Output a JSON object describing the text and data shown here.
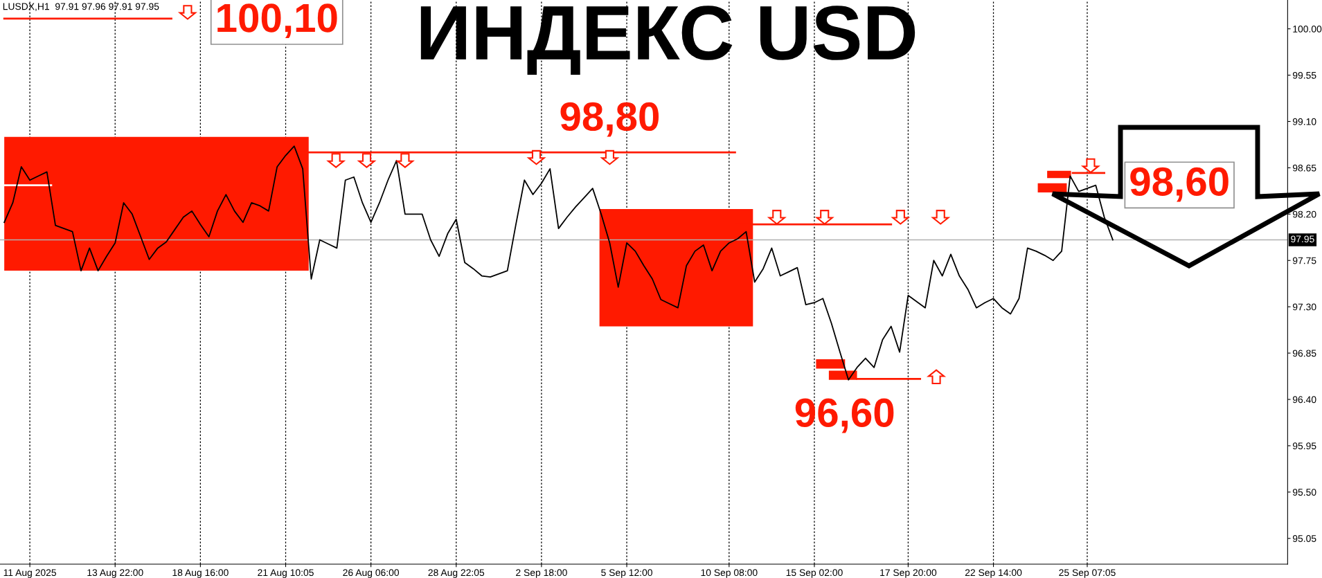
{
  "chart_data": {
    "type": "line",
    "title": "ИНДЕКС USD",
    "categories": [
      null,
      null,
      null,
      "11 Aug 2025",
      null,
      null,
      null,
      null,
      null,
      null,
      null,
      null,
      null,
      "13 Aug 22:00",
      null,
      null,
      null,
      null,
      null,
      null,
      null,
      null,
      null,
      "18 Aug 16:00",
      null,
      null,
      null,
      null,
      null,
      null,
      null,
      null,
      null,
      "21 Aug 10:05",
      null,
      null,
      null,
      null,
      null,
      null,
      null,
      null,
      null,
      "26 Aug 06:00",
      null,
      null,
      null,
      null,
      null,
      null,
      null,
      null,
      null,
      "28 Aug 22:05",
      null,
      null,
      null,
      null,
      null,
      null,
      null,
      null,
      null,
      "2 Sep 18:00",
      null,
      null,
      null,
      null,
      null,
      null,
      null,
      null,
      null,
      "5 Sep 12:00",
      null,
      null,
      null,
      null,
      null,
      null,
      null,
      null,
      null,
      null,
      null,
      "10 Sep 08:00",
      null,
      null,
      null,
      null,
      null,
      null,
      null,
      null,
      null,
      "15 Sep 02:00",
      null,
      null,
      null,
      null,
      null,
      null,
      null,
      null,
      null,
      null,
      "17 Sep 20:00",
      null,
      null,
      null,
      null,
      null,
      null,
      null,
      null,
      null,
      "22 Sep 14:00",
      null,
      null,
      null,
      null,
      null,
      null,
      null,
      null,
      null,
      null,
      "25 Sep 07:05",
      null,
      null,
      null,
      null,
      null,
      null,
      null,
      null,
      null,
      null,
      null,
      null,
      null,
      null,
      null,
      null,
      null,
      null,
      null,
      null,
      null,
      null,
      null
    ],
    "series": [
      {
        "color": "#000000",
        "values": [
          98.12,
          98.31,
          98.66,
          98.53,
          98.57,
          98.61,
          98.09,
          98.06,
          98.03,
          97.65,
          97.87,
          97.65,
          97.79,
          97.92,
          98.31,
          98.2,
          97.98,
          97.76,
          97.87,
          97.93,
          98.05,
          98.17,
          98.23,
          98.1,
          97.98,
          98.23,
          98.39,
          98.23,
          98.12,
          98.31,
          98.28,
          98.23,
          98.66,
          98.77,
          98.86,
          98.64,
          97.57,
          97.95,
          97.91,
          97.87,
          98.53,
          98.56,
          98.31,
          98.12,
          98.31,
          98.53,
          98.72,
          98.2,
          98.2,
          98.2,
          97.95,
          97.79,
          98.01,
          98.15,
          97.73,
          97.67,
          97.6,
          97.59,
          97.62,
          97.65,
          98.1,
          98.53,
          98.39,
          98.5,
          98.64,
          98.06,
          98.17,
          98.27,
          98.36,
          98.45,
          98.2,
          97.92,
          97.49,
          97.92,
          97.84,
          97.7,
          97.57,
          97.37,
          97.33,
          97.29,
          97.7,
          97.84,
          97.9,
          97.65,
          97.84,
          97.92,
          97.96,
          98.03,
          97.54,
          97.67,
          97.87,
          97.6,
          97.64,
          97.68,
          97.32,
          97.34,
          97.38,
          97.14,
          96.86,
          96.59,
          96.71,
          96.8,
          96.71,
          96.98,
          97.11,
          96.86,
          97.41,
          97.35,
          97.29,
          97.75,
          97.6,
          97.81,
          97.6,
          97.47,
          97.29,
          97.34,
          97.38,
          97.29,
          97.23,
          97.38,
          97.87,
          97.84,
          97.8,
          97.75,
          97.84,
          98.57,
          98.42,
          98.45,
          98.48,
          98.17,
          97.95,
          null,
          null,
          null,
          null,
          null,
          null,
          null,
          null,
          null,
          null,
          null,
          null,
          null,
          null,
          null,
          null,
          null,
          null,
          null,
          null
        ]
      }
    ],
    "ylim": [
      94.8,
      100.28
    ],
    "yticks": [
      {
        "value": 100,
        "label": "100.00"
      },
      {
        "value": 99.55,
        "label": "99.55"
      },
      {
        "value": 99.1,
        "label": "99.10"
      },
      {
        "value": 98.65,
        "label": "98.65"
      },
      {
        "value": 98.2,
        "label": "98.20"
      },
      {
        "value": 97.75,
        "label": "97.75"
      },
      {
        "value": 97.3,
        "label": "97.30"
      },
      {
        "value": 96.85,
        "label": "96.85"
      },
      {
        "value": 96.4,
        "label": "96.40"
      },
      {
        "value": 95.95,
        "label": "95.95"
      },
      {
        "value": 95.5,
        "label": "95.50"
      },
      {
        "value": 95.05,
        "label": "95.05"
      }
    ],
    "grid": "x",
    "ref_lines": [
      {
        "axis": "y",
        "value": 97.95,
        "label": "97.95",
        "color": "#b0b0b0"
      },
      {
        "axis": "y",
        "value": 98.8,
        "label": "98,80",
        "color": "#ff1a00"
      }
    ],
    "annotations": [
      "LUSDX,H1  97.91 97.96 97.91 97.95",
      "100,10",
      {
        "text": "96,60",
        "y": 96.6
      },
      "98,60"
    ]
  }
}
